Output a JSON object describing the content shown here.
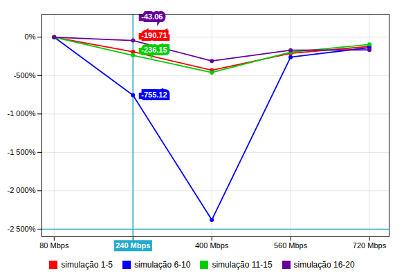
{
  "chart_data": {
    "type": "line",
    "x": [
      80,
      240,
      400,
      560,
      720
    ],
    "series": [
      {
        "name": "simulação 1-5",
        "color": "#ff0000",
        "values": [
          0,
          -190.71,
          -430,
          -210,
          -120
        ]
      },
      {
        "name": "simulação 6-10",
        "color": "#0000ff",
        "values": [
          0,
          -755.12,
          -2380,
          -260,
          -135
        ]
      },
      {
        "name": "simulação 11-15",
        "color": "#00cc00",
        "values": [
          0,
          -236.15,
          -460,
          -195,
          -95
        ]
      },
      {
        "name": "simulação 16-20",
        "color": "#660099",
        "values": [
          0,
          -43.06,
          -310,
          -170,
          -165
        ]
      }
    ],
    "xlim": [
      55,
      760
    ],
    "xticks": [
      {
        "value": 80,
        "label": "80 Mbps"
      },
      {
        "value": 240,
        "label": "240 Mbps"
      },
      {
        "value": 400,
        "label": "400 Mbps"
      },
      {
        "value": 560,
        "label": "560 Mbps"
      },
      {
        "value": 720,
        "label": "720 Mbps"
      }
    ],
    "ylim": [
      -2600,
      300
    ],
    "yticks": [
      {
        "value": 0,
        "label": "0%"
      },
      {
        "value": -500,
        "label": "-500%"
      },
      {
        "value": -1000,
        "label": "-1 000%"
      },
      {
        "value": -1500,
        "label": "-1 500%"
      },
      {
        "value": -2000,
        "label": "-2 000%"
      },
      {
        "value": -2500,
        "label": "-2 500%"
      }
    ],
    "grid": true,
    "legend": "bottom",
    "marker": "circle",
    "annotations": [
      {
        "text": "-43.06",
        "x": 240,
        "y": -43.06,
        "color": "#660099"
      },
      {
        "text": "-190.71",
        "x": 240,
        "y": -190.71,
        "color": "#ff0000"
      },
      {
        "text": "-236.15",
        "x": 240,
        "y": -236.15,
        "color": "#00cc00"
      },
      {
        "text": "-755.12",
        "x": 240,
        "y": -755.12,
        "color": "#0000ff"
      }
    ],
    "reference_lines": [
      {
        "axis": "x",
        "value": 240,
        "color": "#22aacc"
      },
      {
        "axis": "y",
        "value": -2500,
        "color": "#22aacc"
      }
    ]
  }
}
